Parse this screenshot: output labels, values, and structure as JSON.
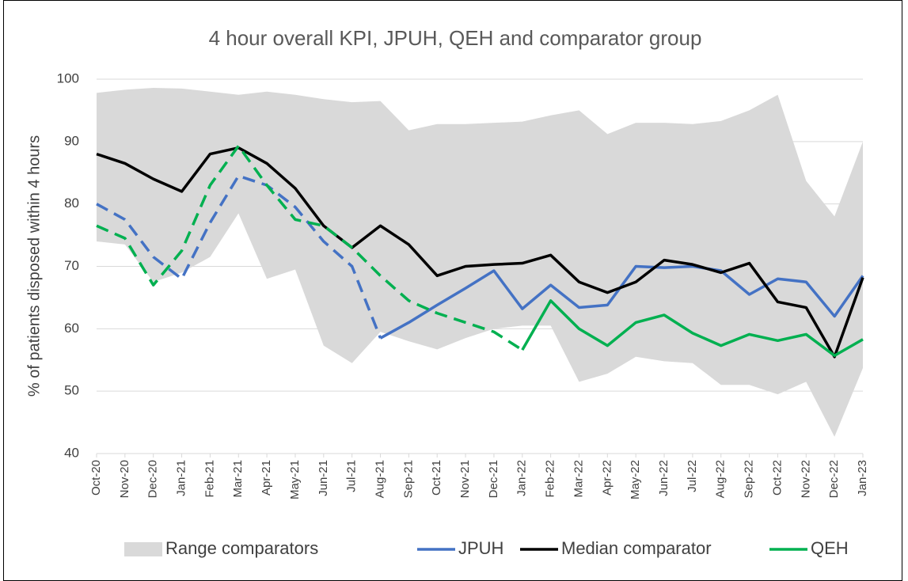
{
  "chart_data": {
    "type": "line",
    "title": "4 hour overall KPI, JPUH, QEH and comparator group",
    "y_label": "% of patients disposed within 4 hours",
    "categories": [
      "Oct-20",
      "Nov-20",
      "Dec-20",
      "Jan-21",
      "Feb-21",
      "Mar-21",
      "Apr-21",
      "May-21",
      "Jun-21",
      "Jul-21",
      "Aug-21",
      "Sep-21",
      "Oct-21",
      "Nov-21",
      "Dec-21",
      "Jan-22",
      "Feb-22",
      "Mar-22",
      "Apr-22",
      "May-22",
      "Jun-22",
      "Jul-22",
      "Aug-22",
      "Sep-22",
      "Oct-22",
      "Nov-22",
      "Dec-22",
      "Jan-23"
    ],
    "ylim": [
      40,
      100
    ],
    "yticks": [
      40,
      50,
      60,
      70,
      80,
      90,
      100
    ],
    "grid": true,
    "series": [
      {
        "name": "Range comparators",
        "type": "area",
        "color": "#d9d9d9",
        "upper": [
          97.8,
          98.3,
          98.6,
          98.5,
          98,
          97.5,
          98,
          97.5,
          96.8,
          96.3,
          96.5,
          91.8,
          92.8,
          92.8,
          93,
          93.2,
          94.2,
          95,
          91.2,
          93,
          93,
          92.8,
          93.3,
          95,
          97.5,
          83.7,
          78,
          90
        ],
        "lower": [
          74,
          73.5,
          67.5,
          69,
          71.5,
          78.5,
          68,
          69.5,
          57.3,
          54.5,
          59.5,
          58,
          56.7,
          58.5,
          60,
          60.5,
          60.5,
          51.5,
          52.8,
          55.5,
          54.8,
          54.5,
          51,
          51,
          49.5,
          51.5,
          42.7,
          53.7
        ]
      },
      {
        "name": "JPUH",
        "type": "line",
        "color": "#4472c4",
        "dashed_until_index": 10,
        "values": [
          80,
          77.5,
          71.5,
          68,
          77,
          84.5,
          83,
          79.5,
          74,
          70,
          58.5,
          61,
          63.8,
          66.5,
          69.3,
          63.2,
          67,
          63.4,
          63.8,
          70,
          69.8,
          70,
          69.3,
          65.5,
          68,
          67.5,
          62,
          68.5
        ]
      },
      {
        "name": "Median comparator",
        "type": "line",
        "color": "#000000",
        "values": [
          88,
          86.5,
          84,
          82,
          88,
          89,
          86.5,
          82.5,
          76.5,
          73,
          76.5,
          73.5,
          68.5,
          70,
          70.3,
          70.5,
          71.8,
          67.5,
          65.8,
          67.5,
          71,
          70.3,
          69,
          70.5,
          64.3,
          63.4,
          55.5,
          68.2
        ]
      },
      {
        "name": "QEH",
        "type": "line",
        "color": "#00b050",
        "dashed_until_index": 15,
        "values": [
          76.5,
          74.5,
          67,
          72.5,
          83,
          89.3,
          83,
          77.5,
          76.5,
          73,
          68.5,
          64.5,
          62.5,
          61,
          59.5,
          56.6,
          64.5,
          60,
          57.3,
          61,
          62.2,
          59.3,
          57.3,
          59.1,
          58.1,
          59.1,
          55.7,
          58.3
        ]
      }
    ]
  }
}
